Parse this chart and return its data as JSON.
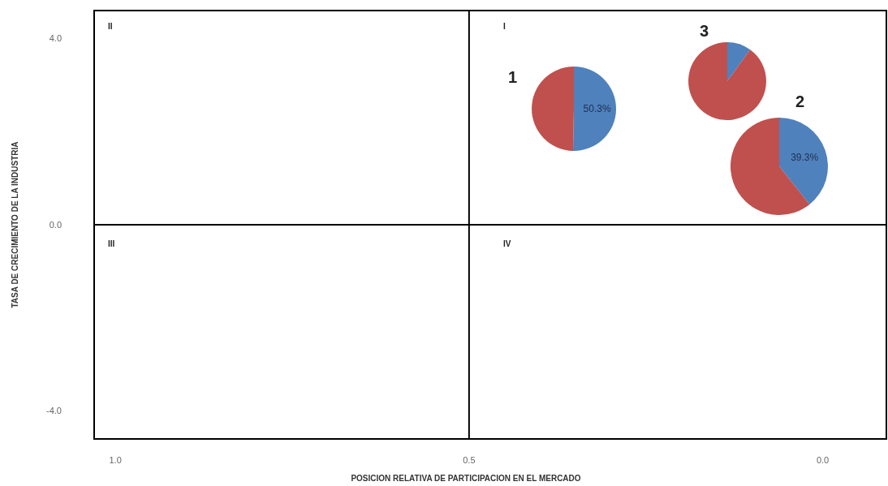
{
  "chart_data": [
    {
      "type": "scatter",
      "xlabel": "POSICION RELATIVA DE PARTICIPACION EN EL MERCADO",
      "ylabel": "TASA DE CRECIMIENTO DE LA INDUSTRIA",
      "xlim": [
        1.03,
        -0.09
      ],
      "xticks": [
        {
          "value": 1.0,
          "label": "1.0"
        },
        {
          "value": 0.5,
          "label": "0.5"
        },
        {
          "value": 0.0,
          "label": "0.0"
        }
      ],
      "ylim": [
        -4.6,
        4.6
      ],
      "yticks": [
        {
          "value": 4.0,
          "label": "4.0"
        },
        {
          "value": 0.0,
          "label": "0.0"
        },
        {
          "value": -4.0,
          "label": "-4.0"
        }
      ],
      "ref_lines": [
        {
          "axis": "x",
          "value": 0.5
        },
        {
          "axis": "y",
          "value": 0
        }
      ],
      "annotations": [
        "II",
        "I",
        "III",
        "IV",
        "1",
        "2",
        "3"
      ]
    },
    {
      "type": "pie",
      "categories": [
        null,
        null
      ],
      "values": [
        50.3,
        49.7
      ],
      "colors": [
        "#4f81bd",
        "#c0504d"
      ],
      "value_labels": [
        "50.3%",
        null
      ]
    },
    {
      "type": "pie",
      "categories": [
        null,
        null
      ],
      "values": [
        39.3,
        60.7
      ],
      "colors": [
        "#4f81bd",
        "#c0504d"
      ],
      "value_labels": [
        "39.3%",
        null
      ]
    },
    {
      "type": "pie",
      "categories": [
        null,
        null
      ],
      "values": [
        10,
        90
      ],
      "colors": [
        "#4f81bd",
        "#c0504d"
      ]
    }
  ]
}
